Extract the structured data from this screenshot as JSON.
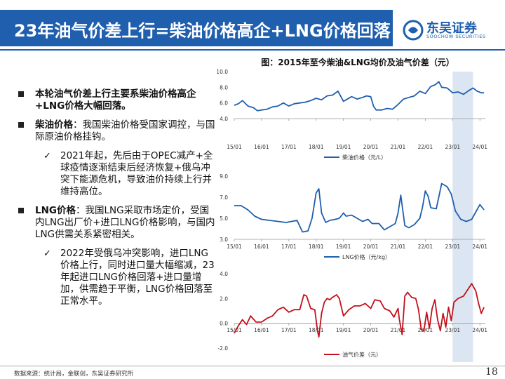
{
  "header": {
    "title": "23年油气价差上行=柴油价格高企+LNG价格回落",
    "logo_cn": "东吴证券",
    "logo_en": "SOOCHOW SECURITIES"
  },
  "chart_title": "图：2015年至今柴油&LNG均价及油气价差（元）",
  "bullets": [
    {
      "bold": "本轮油气价差上行主要系柴油价格高企+LNG价格大幅回落。",
      "text": ""
    },
    {
      "bold": "柴油价格",
      "text": "：我国柴油价格受国家调控，与国际原油价格挂钩。"
    },
    {
      "sub": "2021年起，先后由于OPEC减产+全球疫情逐渐结束后经济恢复+俄乌冲突下能源危机，导致油价持续上行并维持高位。"
    },
    {
      "bold": "LNG价格",
      "text": "：我国LNG采取市场定价，受国内LNG出厂价+进口LNG价格影响，与国内LNG供需关系紧密相关。"
    },
    {
      "sub": "2022年受俄乌冲突影响，进口LNG价格上行，同时进口量大幅缩减，23年起进口LNG价格回落+进口量增加，供需趋于平衡，LNG价格回落至正常水平。"
    }
  ],
  "footer": "数据来源：统计局，金联创，东吴证券研究所",
  "page_number": "18",
  "highlight_period": [
    2023.0,
    2023.75
  ],
  "chart_data": [
    {
      "type": "line",
      "name": "diesel",
      "legend": "柴油价格（元/L）",
      "color": "#1f5fae",
      "ylim": [
        4.0,
        10.0
      ],
      "yticks": [
        "4.0",
        "6.0",
        "8.0",
        "10.0"
      ],
      "xticks": [
        "15/01",
        "16/01",
        "17/01",
        "18/01",
        "19/01",
        "20/01",
        "21/01",
        "22/01",
        "23/01",
        "24/01"
      ],
      "x": [
        2015.0,
        2015.15,
        2015.3,
        2015.5,
        2015.7,
        2015.85,
        2016.0,
        2016.2,
        2016.4,
        2016.6,
        2016.8,
        2017.0,
        2017.2,
        2017.4,
        2017.6,
        2017.8,
        2018.0,
        2018.2,
        2018.4,
        2018.6,
        2018.8,
        2019.0,
        2019.1,
        2019.3,
        2019.5,
        2019.7,
        2019.85,
        2020.0,
        2020.1,
        2020.2,
        2020.4,
        2020.6,
        2020.8,
        2021.0,
        2021.2,
        2021.4,
        2021.6,
        2021.8,
        2022.0,
        2022.2,
        2022.35,
        2022.5,
        2022.6,
        2022.8,
        2023.0,
        2023.2,
        2023.4,
        2023.6,
        2023.75,
        2023.9,
        2024.05,
        2024.15
      ],
      "values": [
        5.7,
        5.9,
        6.3,
        5.6,
        5.4,
        5.0,
        5.1,
        5.2,
        5.5,
        5.6,
        6.0,
        5.6,
        5.9,
        6.0,
        6.1,
        6.3,
        6.6,
        6.4,
        6.9,
        7.0,
        7.5,
        6.2,
        6.4,
        6.8,
        6.5,
        6.7,
        6.9,
        6.8,
        5.6,
        5.1,
        5.1,
        5.3,
        5.2,
        5.8,
        6.5,
        6.7,
        6.9,
        7.5,
        7.2,
        8.1,
        8.3,
        8.7,
        8.0,
        7.9,
        7.3,
        7.4,
        7.1,
        7.6,
        7.9,
        7.5,
        7.3,
        7.3
      ]
    },
    {
      "type": "line",
      "name": "lng",
      "legend": "LNG价格（元/kg）",
      "color": "#1f5fae",
      "ylim": [
        3.0,
        9.0
      ],
      "yticks": [
        "3.0",
        "5.0",
        "7.0",
        "9.0"
      ],
      "xticks": [
        "15/01",
        "16/01",
        "17/01",
        "18/01",
        "19/01",
        "20/01",
        "21/01",
        "22/01",
        "23/01",
        "24/01"
      ],
      "x": [
        2015.0,
        2015.25,
        2015.5,
        2015.75,
        2016.0,
        2016.3,
        2016.6,
        2016.9,
        2017.1,
        2017.3,
        2017.5,
        2017.7,
        2017.85,
        2018.0,
        2018.1,
        2018.2,
        2018.35,
        2018.5,
        2018.7,
        2018.85,
        2019.0,
        2019.1,
        2019.3,
        2019.5,
        2019.7,
        2019.9,
        2020.05,
        2020.3,
        2020.5,
        2020.7,
        2020.9,
        2021.0,
        2021.1,
        2021.25,
        2021.4,
        2021.6,
        2021.8,
        2021.9,
        2022.0,
        2022.1,
        2022.2,
        2022.4,
        2022.6,
        2022.8,
        2022.95,
        2023.1,
        2023.3,
        2023.5,
        2023.7,
        2023.85,
        2024.0,
        2024.15
      ],
      "values": [
        6.2,
        6.2,
        5.8,
        5.2,
        4.9,
        4.8,
        4.7,
        4.6,
        4.7,
        4.8,
        3.7,
        3.8,
        5.0,
        7.4,
        7.8,
        5.5,
        4.6,
        4.8,
        4.9,
        5.0,
        5.5,
        5.2,
        5.3,
        5.0,
        4.7,
        4.9,
        4.5,
        4.5,
        3.9,
        4.2,
        4.5,
        5.5,
        7.2,
        4.3,
        4.1,
        4.4,
        5.0,
        6.1,
        7.6,
        7.1,
        6.0,
        5.9,
        8.3,
        8.0,
        7.3,
        5.7,
        4.9,
        4.7,
        4.9,
        5.6,
        6.3,
        5.8
      ]
    },
    {
      "type": "line",
      "name": "spread",
      "legend": "油气价差（元）",
      "color": "#c1111b",
      "ylim": [
        -2.0,
        4.0
      ],
      "yticks": [
        "-2.0",
        "0.0",
        "2.0",
        "4.0"
      ],
      "xticks": [
        "15/01",
        "16/01",
        "17/01",
        "18/01",
        "19/01",
        "20/01",
        "21/01",
        "22/01",
        "23/01",
        "24/01"
      ],
      "x": [
        2015.0,
        2015.15,
        2015.3,
        2015.45,
        2015.6,
        2015.8,
        2016.0,
        2016.2,
        2016.4,
        2016.6,
        2016.8,
        2017.0,
        2017.2,
        2017.4,
        2017.55,
        2017.65,
        2017.8,
        2017.95,
        2018.05,
        2018.1,
        2018.2,
        2018.3,
        2018.4,
        2018.5,
        2018.6,
        2018.75,
        2018.85,
        2019.0,
        2019.2,
        2019.4,
        2019.6,
        2019.8,
        2020.0,
        2020.15,
        2020.35,
        2020.5,
        2020.7,
        2020.85,
        2021.0,
        2021.05,
        2021.15,
        2021.25,
        2021.35,
        2021.5,
        2021.65,
        2021.75,
        2021.85,
        2021.95,
        2022.05,
        2022.15,
        2022.25,
        2022.35,
        2022.45,
        2022.55,
        2022.65,
        2022.75,
        2022.85,
        2022.95,
        2023.05,
        2023.2,
        2023.4,
        2023.55,
        2023.7,
        2023.85,
        2023.95,
        2024.05,
        2024.15
      ],
      "values": [
        -0.8,
        -0.2,
        0.3,
        -0.1,
        0.6,
        0.1,
        0.1,
        0.4,
        0.6,
        1.1,
        1.3,
        0.9,
        1.1,
        1.1,
        2.3,
        2.2,
        1.2,
        1.1,
        -0.6,
        -1.1,
        0.8,
        1.7,
        2.0,
        1.9,
        2.1,
        2.3,
        2.0,
        0.6,
        1.1,
        1.4,
        1.4,
        1.6,
        1.2,
        1.9,
        1.8,
        1.2,
        1.0,
        0.5,
        1.2,
        0.3,
        -0.9,
        2.2,
        2.5,
        2.1,
        2.0,
        1.1,
        -0.5,
        -0.6,
        0.9,
        -0.4,
        1.2,
        1.9,
        0.3,
        -0.6,
        0.8,
        -0.3,
        1.3,
        0.2,
        1.7,
        2.0,
        2.2,
        2.7,
        3.2,
        2.6,
        1.6,
        0.8,
        1.3
      ]
    }
  ]
}
